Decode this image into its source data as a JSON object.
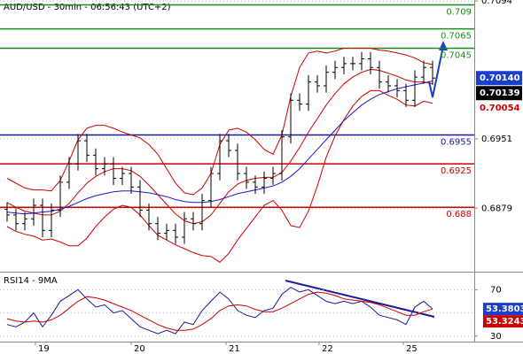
{
  "chart_data": [
    {
      "type": "ohlc",
      "title": "AUD/USD - 30min - 06:56:43 (UTC+2)",
      "xlim": [
        -0.8,
        52.7
      ],
      "ylim": [
        0.6815,
        0.7095
      ],
      "xticks": [
        {
          "value": 3.2,
          "label": "19"
        },
        {
          "value": 14,
          "label": "20"
        },
        {
          "value": 24.7,
          "label": "21"
        },
        {
          "value": 35.2,
          "label": "22"
        },
        {
          "value": 44.7,
          "label": "25"
        }
      ],
      "yticks": [
        0.7094,
        0.6951,
        0.6879
      ],
      "grid": true,
      "color": "#000000",
      "open": [
        0.6878,
        0.6872,
        0.6863,
        0.6868,
        0.6882,
        0.6856,
        0.6877,
        0.6906,
        0.6925,
        0.6949,
        0.6934,
        0.692,
        0.6925,
        0.691,
        0.6915,
        0.6901,
        0.6877,
        0.6863,
        0.6853,
        0.6856,
        0.6849,
        0.6868,
        0.6863,
        0.6887,
        0.6915,
        0.6949,
        0.6939,
        0.6915,
        0.6906,
        0.6901,
        0.691,
        0.6915,
        0.6953,
        0.6991,
        0.6987,
        0.701,
        0.7006,
        0.702,
        0.7025,
        0.7029,
        0.7029,
        0.7034,
        0.7025,
        0.701,
        0.7006,
        0.7001,
        0.6991,
        0.7015,
        0.7025
      ],
      "high": [
        0.6885,
        0.6879,
        0.6875,
        0.6889,
        0.6889,
        0.6884,
        0.6913,
        0.6932,
        0.6956,
        0.6956,
        0.6941,
        0.6932,
        0.6932,
        0.6922,
        0.6922,
        0.6908,
        0.6884,
        0.687,
        0.6863,
        0.6863,
        0.6875,
        0.6875,
        0.6894,
        0.6922,
        0.6956,
        0.6956,
        0.6946,
        0.6922,
        0.6913,
        0.6917,
        0.6922,
        0.696,
        0.6998,
        0.6998,
        0.7017,
        0.7017,
        0.7027,
        0.7032,
        0.7036,
        0.7036,
        0.7041,
        0.7041,
        0.7032,
        0.7017,
        0.7013,
        0.7008,
        0.7022,
        0.7032,
        0.7032
      ],
      "low": [
        0.6865,
        0.6856,
        0.6856,
        0.6861,
        0.6849,
        0.6849,
        0.687,
        0.6899,
        0.6918,
        0.6927,
        0.6913,
        0.6913,
        0.6903,
        0.6903,
        0.6894,
        0.687,
        0.6856,
        0.6846,
        0.6846,
        0.6842,
        0.6842,
        0.6856,
        0.6856,
        0.688,
        0.6908,
        0.6932,
        0.6908,
        0.6899,
        0.6894,
        0.6894,
        0.6903,
        0.6908,
        0.6946,
        0.698,
        0.698,
        0.6999,
        0.6999,
        0.7013,
        0.7018,
        0.7022,
        0.7022,
        0.7018,
        0.7003,
        0.6999,
        0.6994,
        0.6984,
        0.6984,
        0.7008,
        0.7007
      ],
      "close": [
        0.6872,
        0.6863,
        0.6868,
        0.6882,
        0.6856,
        0.6877,
        0.6906,
        0.6925,
        0.6949,
        0.6934,
        0.692,
        0.6925,
        0.691,
        0.6915,
        0.6901,
        0.6877,
        0.6863,
        0.6853,
        0.6856,
        0.6849,
        0.6868,
        0.6863,
        0.6887,
        0.6915,
        0.6949,
        0.6939,
        0.6915,
        0.6906,
        0.6901,
        0.691,
        0.6915,
        0.6953,
        0.6991,
        0.6987,
        0.701,
        0.7006,
        0.702,
        0.7025,
        0.7029,
        0.7029,
        0.7034,
        0.7025,
        0.701,
        0.7006,
        0.7001,
        0.6991,
        0.7015,
        0.7025,
        0.7014
      ],
      "lines": [
        {
          "color": "#cc0000",
          "values": [
            0.691,
            0.6905,
            0.69,
            0.6898,
            0.6898,
            0.6897,
            0.6908,
            0.6928,
            0.695,
            0.6962,
            0.6965,
            0.6965,
            0.6962,
            0.6958,
            0.6955,
            0.6952,
            0.6945,
            0.6935,
            0.692,
            0.6905,
            0.6895,
            0.6893,
            0.69,
            0.6915,
            0.6945,
            0.696,
            0.6962,
            0.6958,
            0.695,
            0.694,
            0.6935,
            0.6955,
            0.6995,
            0.7025,
            0.704,
            0.7042,
            0.704,
            0.7042,
            0.7045,
            0.7045,
            0.7045,
            0.7045,
            0.7043,
            0.7042,
            0.704,
            0.7038,
            0.7035,
            0.703,
            0.7028
          ]
        },
        {
          "color": "#cc0000",
          "values": [
            0.6885,
            0.688,
            0.6876,
            0.6874,
            0.6872,
            0.6872,
            0.6876,
            0.6884,
            0.6895,
            0.6905,
            0.6912,
            0.6917,
            0.692,
            0.692,
            0.6918,
            0.6912,
            0.6903,
            0.6893,
            0.6883,
            0.6873,
            0.6866,
            0.6863,
            0.6865,
            0.6872,
            0.6884,
            0.6896,
            0.6904,
            0.6908,
            0.691,
            0.6911,
            0.6911,
            0.6916,
            0.6928,
            0.6942,
            0.6958,
            0.6972,
            0.6986,
            0.6998,
            0.7008,
            0.7015,
            0.702,
            0.7023,
            0.7022,
            0.7019,
            0.7016,
            0.7012,
            0.701,
            0.701,
            0.7008
          ]
        },
        {
          "color": "#cc0000",
          "values": [
            0.686,
            0.6855,
            0.6852,
            0.685,
            0.6846,
            0.6847,
            0.6844,
            0.684,
            0.684,
            0.6848,
            0.686,
            0.687,
            0.6878,
            0.6882,
            0.688,
            0.6872,
            0.6861,
            0.6851,
            0.6846,
            0.6841,
            0.6837,
            0.6833,
            0.683,
            0.6829,
            0.6823,
            0.6832,
            0.6846,
            0.6858,
            0.687,
            0.6882,
            0.6887,
            0.6877,
            0.6861,
            0.6859,
            0.6876,
            0.6902,
            0.6932,
            0.6954,
            0.6971,
            0.6985,
            0.6995,
            0.7001,
            0.7001,
            0.6996,
            0.6992,
            0.6986,
            0.6985,
            0.699,
            0.6988
          ]
        },
        {
          "color": "#1a1acc",
          "values": [
            0.6875,
            0.6874,
            0.6873,
            0.6874,
            0.6875,
            0.6876,
            0.6878,
            0.6881,
            0.6885,
            0.6889,
            0.6892,
            0.6894,
            0.6896,
            0.6897,
            0.6897,
            0.6896,
            0.6895,
            0.6893,
            0.6891,
            0.6888,
            0.6886,
            0.6885,
            0.6885,
            0.6886,
            0.6888,
            0.6891,
            0.6894,
            0.6896,
            0.6898,
            0.69,
            0.6902,
            0.6906,
            0.6912,
            0.692,
            0.693,
            0.694,
            0.695,
            0.696,
            0.697,
            0.6978,
            0.6986,
            0.6992,
            0.6997,
            0.7,
            0.7003,
            0.7005,
            0.7007,
            0.7009,
            0.7011
          ]
        }
      ],
      "levels": [
        {
          "value": 0.709,
          "color": "#1a8c1a"
        },
        {
          "value": 0.7065,
          "color": "#1a8c1a"
        },
        {
          "value": 0.7045,
          "color": "#1a8c1a"
        },
        {
          "value": 0.6955,
          "color": "#1a1a99"
        },
        {
          "value": 0.6925,
          "color": "#cc0000"
        },
        {
          "value": 0.688,
          "color": "#cc0000"
        }
      ],
      "price_tags": [
        {
          "value": 0.7014,
          "label": "0.70140",
          "background": "#1a3fcc",
          "color": "#ffffff"
        },
        {
          "value": 0.70139,
          "label": "0.70139",
          "background": "#000000",
          "color": "#ffffff"
        },
        {
          "value": 0.70054,
          "label": "0.70054",
          "background": "#ffffff",
          "color": "#cc0000"
        }
      ]
    },
    {
      "type": "line",
      "title": "RSI14 - 9MA",
      "xlim": [
        -0.8,
        52.7
      ],
      "ylim": [
        26,
        84
      ],
      "yticks": [
        70,
        30
      ],
      "hlines": [
        50
      ],
      "series": [
        {
          "color": "#1a1a99",
          "values": [
            40,
            38,
            42,
            50,
            38,
            48,
            60,
            65,
            70,
            62,
            55,
            57,
            50,
            52,
            45,
            38,
            35,
            32,
            35,
            32,
            42,
            40,
            52,
            60,
            68,
            62,
            52,
            48,
            46,
            52,
            54,
            66,
            72,
            68,
            70,
            65,
            60,
            58,
            60,
            58,
            60,
            55,
            48,
            46,
            44,
            40,
            55,
            60,
            53.3803
          ]
        },
        {
          "color": "#cc0000",
          "values": [
            45,
            43,
            42,
            43,
            42,
            44,
            48,
            54,
            60,
            64,
            63,
            61,
            58,
            55,
            52,
            48,
            44,
            40,
            37,
            35,
            35,
            36,
            40,
            45,
            52,
            56,
            57,
            56,
            53,
            51,
            51,
            54,
            58,
            62,
            66,
            68,
            67,
            65,
            62,
            61,
            60,
            59,
            57,
            54,
            51,
            48,
            48,
            51,
            53.3243
          ]
        }
      ],
      "value_tags": [
        {
          "value": 53.3803,
          "background": "#1a3fcc"
        },
        {
          "value": 53.3243,
          "background": "#cc0000"
        }
      ]
    }
  ]
}
